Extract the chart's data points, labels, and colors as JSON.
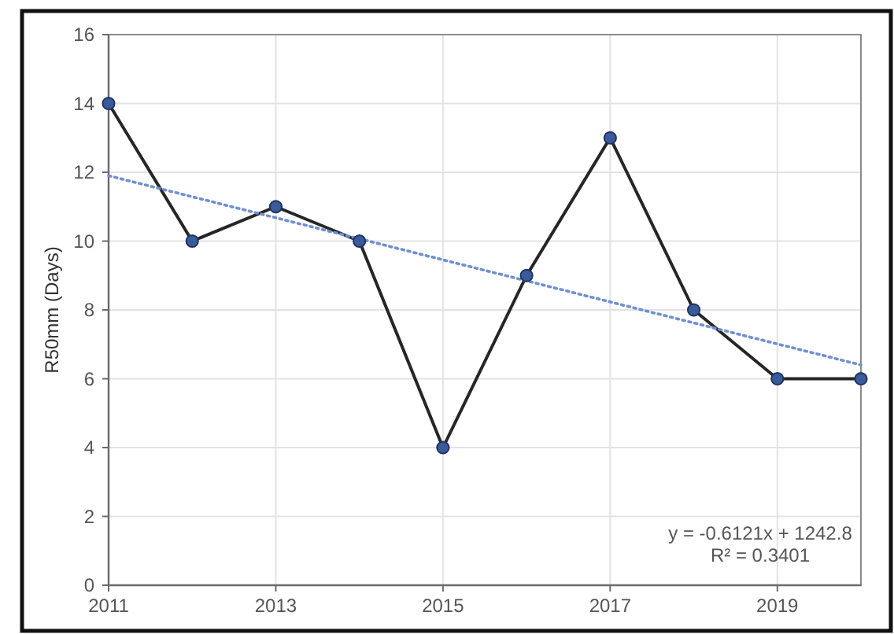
{
  "chart_data": {
    "type": "line",
    "ylabel": "R50mm (Days)",
    "x": [
      2011,
      2012,
      2013,
      2014,
      2015,
      2016,
      2017,
      2018,
      2019,
      2020
    ],
    "series": [
      {
        "color": "#262626",
        "values": [
          14,
          10,
          11,
          10,
          4,
          9,
          13,
          8,
          6,
          6
        ],
        "marker": "circle",
        "line_style": "solid"
      },
      {
        "type": "line",
        "color": "#7090d0",
        "x": [
          2011,
          2020
        ],
        "values": [
          11.9,
          6.4
        ],
        "marker": "none",
        "line_style": "dotted"
      }
    ],
    "xlim": [
      2011,
      2020
    ],
    "xticks": [
      2011,
      2013,
      2015,
      2017,
      2019
    ],
    "ylim": [
      0,
      16
    ],
    "yticks": [
      0,
      2,
      4,
      6,
      8,
      10,
      12,
      14,
      16
    ],
    "grid": true,
    "annotations": [
      "y = -0.6121x + 1242.8",
      "R² = 0.3401"
    ]
  }
}
